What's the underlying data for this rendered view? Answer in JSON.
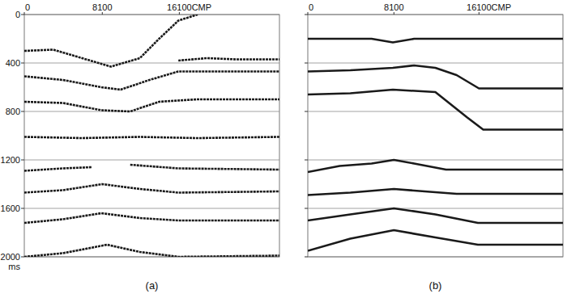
{
  "chart_data": [
    {
      "type": "line",
      "title": "(a)",
      "xlabel": "CMP",
      "ylabel": "ms",
      "color": "#1a1a1a",
      "grid": true,
      "xlim": [
        0,
        26500
      ],
      "xticks": [
        0,
        8100,
        16100
      ],
      "ylim": [
        0,
        2000
      ],
      "yticks": [
        0,
        400,
        800,
        1200,
        1600,
        2000
      ],
      "series": [
        {
          "x": [
            0,
            3000,
            6000,
            9000,
            12000,
            14000,
            16000,
            18000
          ],
          "values": [
            300,
            290,
            360,
            430,
            360,
            200,
            50,
            0
          ]
        },
        {
          "x": [
            16000,
            19000,
            22000,
            26500
          ],
          "values": [
            380,
            360,
            370,
            370
          ]
        },
        {
          "x": [
            0,
            4000,
            8000,
            10000,
            13000,
            16000,
            20000,
            26500
          ],
          "values": [
            510,
            540,
            600,
            620,
            540,
            470,
            470,
            470
          ]
        },
        {
          "x": [
            0,
            4000,
            8000,
            11000,
            14000,
            18000,
            26500
          ],
          "values": [
            720,
            730,
            790,
            800,
            720,
            700,
            700
          ]
        },
        {
          "x": [
            0,
            6000,
            12000,
            18000,
            26500
          ],
          "values": [
            1010,
            1020,
            1010,
            1020,
            1010
          ]
        },
        {
          "x": [
            0,
            4000,
            7000,
            null,
            11000,
            16000,
            26500
          ],
          "values": [
            1290,
            1270,
            1260,
            null,
            1240,
            1270,
            1280
          ]
        },
        {
          "x": [
            0,
            4000,
            8100,
            12000,
            16000,
            26500
          ],
          "values": [
            1470,
            1450,
            1400,
            1440,
            1470,
            1460
          ]
        },
        {
          "x": [
            0,
            4000,
            8000,
            12000,
            16000,
            26500
          ],
          "values": [
            1720,
            1690,
            1640,
            1680,
            1700,
            1700
          ]
        },
        {
          "x": [
            0,
            4000,
            8600,
            12000,
            16000,
            26500
          ],
          "values": [
            2000,
            1970,
            1900,
            1960,
            2000,
            1990
          ]
        }
      ]
    },
    {
      "type": "line",
      "title": "(b)",
      "xlabel": "CMP",
      "color": "#1a1a1a",
      "grid": true,
      "tick_labels": "x",
      "xlim": [
        0,
        24000
      ],
      "xticks": [
        0,
        8100,
        16100
      ],
      "ylim": [
        0,
        2000
      ],
      "yticks": [
        0,
        400,
        800,
        1200,
        1600,
        2000
      ],
      "series": [
        {
          "x": [
            0,
            6000,
            8000,
            10000,
            24000
          ],
          "values": [
            200,
            200,
            230,
            200,
            200
          ]
        },
        {
          "x": [
            0,
            4000,
            8000,
            10000,
            12000,
            14000,
            16100,
            24000
          ],
          "values": [
            470,
            460,
            440,
            420,
            440,
            500,
            610,
            610
          ]
        },
        {
          "x": [
            0,
            4000,
            8000,
            12000,
            15000,
            16500,
            24000
          ],
          "values": [
            660,
            650,
            620,
            640,
            850,
            950,
            950
          ]
        },
        {
          "x": [
            0,
            3000,
            6000,
            8100,
            10000,
            13000,
            24000
          ],
          "values": [
            1300,
            1250,
            1230,
            1200,
            1230,
            1280,
            1280
          ]
        },
        {
          "x": [
            0,
            4000,
            8100,
            11000,
            14000,
            24000
          ],
          "values": [
            1490,
            1470,
            1440,
            1460,
            1480,
            1480
          ]
        },
        {
          "x": [
            0,
            4000,
            8100,
            12000,
            16000,
            24000
          ],
          "values": [
            1700,
            1650,
            1600,
            1650,
            1720,
            1720
          ]
        },
        {
          "x": [
            0,
            4000,
            8100,
            12000,
            16000,
            24000
          ],
          "values": [
            1950,
            1850,
            1780,
            1840,
            1900,
            1900
          ]
        }
      ]
    }
  ]
}
